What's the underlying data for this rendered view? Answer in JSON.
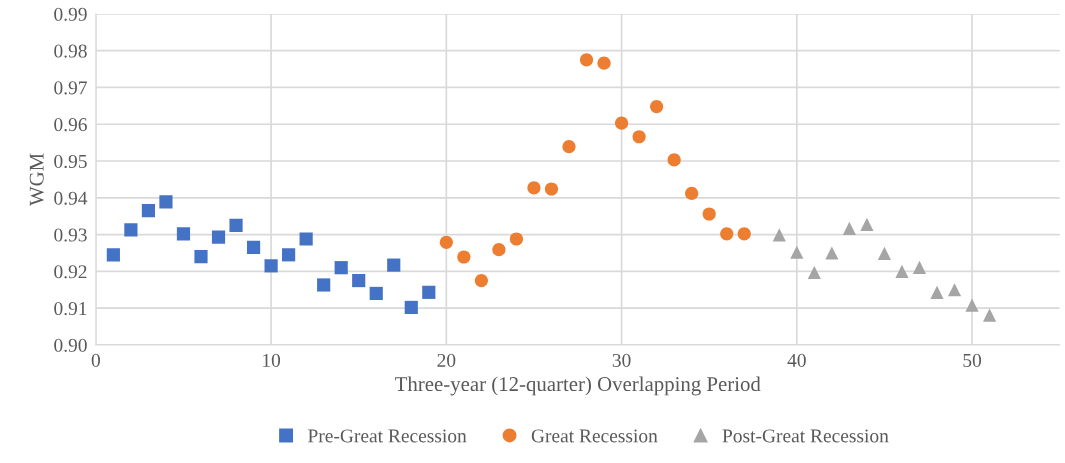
{
  "chart_data": {
    "type": "scatter",
    "xlabel": "Three-year (12-quarter) Overlapping Period",
    "ylabel": "WGM",
    "xlim": [
      0,
      55
    ],
    "xticks": [
      0,
      10,
      20,
      30,
      40,
      50
    ],
    "ylim": [
      0.9,
      0.99
    ],
    "yticks": [
      {
        "value": 0.9,
        "label": "0.90"
      },
      0.91,
      0.92,
      0.93,
      0.94,
      0.95,
      0.96,
      0.97,
      0.98,
      0.99
    ],
    "grid": true,
    "legend": "bottom",
    "series": [
      {
        "name": "Pre-Great Recession",
        "color": "#4472c4",
        "marker": "square",
        "x": [
          1,
          2,
          3,
          4,
          5,
          6,
          7,
          8,
          9,
          10,
          11,
          12,
          13,
          14,
          15,
          16,
          17,
          18,
          19
        ],
        "values": [
          0.9245,
          0.9313,
          0.9365,
          0.9389,
          0.9302,
          0.924,
          0.9293,
          0.9325,
          0.9265,
          0.9215,
          0.9245,
          0.9288,
          0.9163,
          0.921,
          0.9175,
          0.914,
          0.9217,
          0.9102,
          0.9143
        ]
      },
      {
        "name": "Great Recession",
        "color": "#ed7d31",
        "marker": "circle",
        "x": [
          20,
          21,
          22,
          23,
          24,
          25,
          26,
          27,
          28,
          29,
          30,
          31,
          32,
          33,
          34,
          35,
          36,
          37
        ],
        "values": [
          0.9279,
          0.9239,
          0.9175,
          0.9259,
          0.9288,
          0.9427,
          0.9424,
          0.9539,
          0.9775,
          0.9766,
          0.9603,
          0.9566,
          0.9648,
          0.9503,
          0.9412,
          0.9356,
          0.9302,
          0.9302
        ]
      },
      {
        "name": "Post-Great Recession",
        "color": "#a5a5a5",
        "marker": "triangle",
        "x": [
          39,
          40,
          41,
          42,
          43,
          44,
          45,
          46,
          47,
          48,
          49,
          50,
          51
        ],
        "values": [
          0.9299,
          0.9252,
          0.9197,
          0.925,
          0.9317,
          0.9328,
          0.9249,
          0.92,
          0.9211,
          0.9143,
          0.915,
          0.9108,
          0.9081
        ]
      }
    ]
  }
}
